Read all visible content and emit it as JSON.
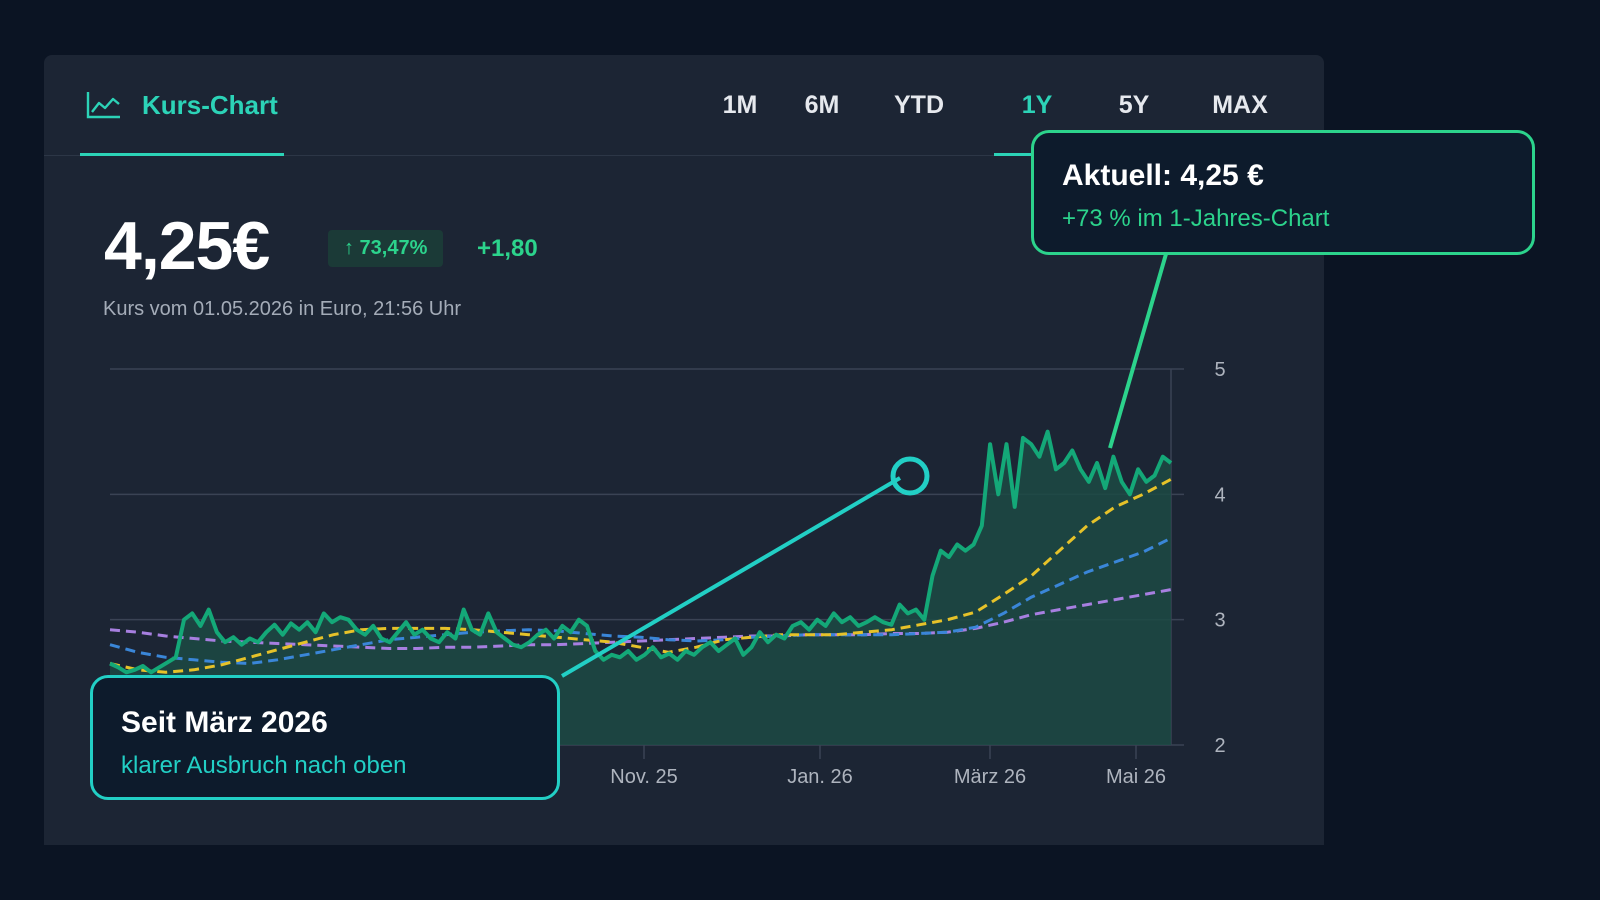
{
  "header": {
    "brand_label": "Kurs-Chart",
    "brand_icon": "line-chart-icon",
    "tabs": [
      {
        "label": "1M",
        "active": false
      },
      {
        "label": "6M",
        "active": false
      },
      {
        "label": "YTD",
        "active": false
      },
      {
        "label": "1Y",
        "active": true
      },
      {
        "label": "5Y",
        "active": false
      },
      {
        "label": "MAX",
        "active": false
      }
    ]
  },
  "quote": {
    "price": "4,25€",
    "change_percent": "↑ 73,47%",
    "change_abs": "+1,80",
    "subline": "Kurs vom 01.05.2026 in Euro, 21:56 Uhr"
  },
  "callouts": {
    "current": {
      "title": "Aktuell: 4,25 €",
      "subtitle": "+73 % im 1-Jahres-Chart"
    },
    "since_march": {
      "title": "Seit März 2026",
      "subtitle": "klarer Ausbruch nach oben"
    }
  },
  "colors": {
    "accent": "#2cd3b7",
    "price_line": "#14a878",
    "price_area": "#1c4a44",
    "ma_yellow": "#e6c229",
    "ma_blue": "#3a86d8",
    "ma_purple": "#a77fe0",
    "positive": "#2cd38c"
  },
  "chart_data": {
    "type": "line",
    "x_tick_labels": [
      "Nov. 25",
      "Jan. 26",
      "März 26",
      "Mai 26"
    ],
    "y_ticks": [
      2,
      3,
      4,
      5
    ],
    "ylim": [
      2,
      5
    ],
    "grid": true,
    "y_axis_side": "right",
    "series": [
      {
        "key": "price",
        "values": [
          2.65,
          2.62,
          2.58,
          2.6,
          2.63,
          2.58,
          2.62,
          2.66,
          2.7,
          3.0,
          3.05,
          2.95,
          3.08,
          2.9,
          2.82,
          2.86,
          2.8,
          2.85,
          2.82,
          2.9,
          2.96,
          2.88,
          2.97,
          2.92,
          2.98,
          2.9,
          3.05,
          2.98,
          3.02,
          3.0,
          2.92,
          2.88,
          2.95,
          2.85,
          2.82,
          2.9,
          2.98,
          2.88,
          2.92,
          2.85,
          2.82,
          2.9,
          2.85,
          3.08,
          2.92,
          2.88,
          3.05,
          2.9,
          2.85,
          2.8,
          2.78,
          2.82,
          2.88,
          2.92,
          2.85,
          2.95,
          2.9,
          3.0,
          2.95,
          2.75,
          2.68,
          2.72,
          2.7,
          2.75,
          2.68,
          2.72,
          2.78,
          2.7,
          2.73,
          2.68,
          2.75,
          2.72,
          2.78,
          2.82,
          2.75,
          2.8,
          2.85,
          2.72,
          2.78,
          2.9,
          2.82,
          2.88,
          2.85,
          2.95,
          2.98,
          2.92,
          3.0,
          2.95,
          3.05,
          2.98,
          3.02,
          2.95,
          2.98,
          3.02,
          2.98,
          2.96,
          3.12,
          3.05,
          3.08,
          3.0,
          3.35,
          3.55,
          3.5,
          3.6,
          3.55,
          3.6,
          3.75,
          4.4,
          4.0,
          4.4,
          3.9,
          4.45,
          4.4,
          4.3,
          4.5,
          4.2,
          4.25,
          4.35,
          4.2,
          4.1,
          4.25,
          4.05,
          4.3,
          4.1,
          4.0,
          4.2,
          4.1,
          4.15,
          4.3,
          4.25
        ]
      },
      {
        "key": "ma_yellow",
        "values": [
          2.65,
          2.6,
          2.58,
          2.6,
          2.64,
          2.7,
          2.76,
          2.82,
          2.88,
          2.92,
          2.93,
          2.93,
          2.93,
          2.92,
          2.9,
          2.88,
          2.86,
          2.84,
          2.82,
          2.78,
          2.74,
          2.78,
          2.84,
          2.86,
          2.88,
          2.88,
          2.88,
          2.9,
          2.92,
          2.96,
          3.0,
          3.06,
          3.2,
          3.35,
          3.55,
          3.75,
          3.9,
          4.0,
          4.12
        ]
      },
      {
        "key": "ma_blue",
        "values": [
          2.8,
          2.74,
          2.7,
          2.68,
          2.66,
          2.65,
          2.68,
          2.72,
          2.76,
          2.8,
          2.84,
          2.86,
          2.88,
          2.9,
          2.91,
          2.92,
          2.91,
          2.89,
          2.87,
          2.86,
          2.84,
          2.83,
          2.84,
          2.86,
          2.87,
          2.88,
          2.88,
          2.88,
          2.88,
          2.89,
          2.9,
          2.94,
          3.05,
          3.18,
          3.28,
          3.38,
          3.46,
          3.54,
          3.65
        ]
      },
      {
        "key": "ma_purple",
        "values": [
          2.92,
          2.9,
          2.87,
          2.85,
          2.83,
          2.82,
          2.81,
          2.8,
          2.79,
          2.78,
          2.77,
          2.77,
          2.78,
          2.78,
          2.79,
          2.8,
          2.8,
          2.81,
          2.82,
          2.83,
          2.84,
          2.85,
          2.86,
          2.87,
          2.87,
          2.88,
          2.88,
          2.88,
          2.89,
          2.89,
          2.9,
          2.93,
          2.98,
          3.04,
          3.08,
          3.12,
          3.16,
          3.2,
          3.24
        ]
      }
    ]
  }
}
